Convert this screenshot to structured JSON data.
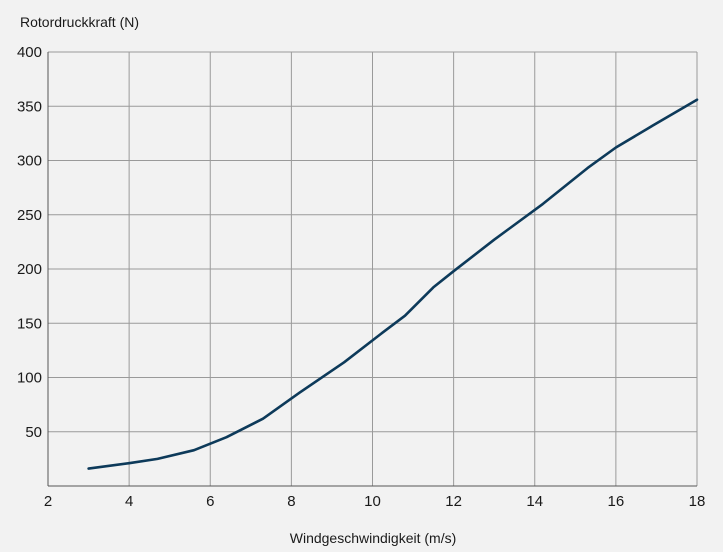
{
  "chart_data": {
    "type": "line",
    "title": "",
    "xlabel": "Windgeschwindigkeit (m/s)",
    "ylabel": "Rotordruckkraft (N)",
    "xlim": [
      2,
      18
    ],
    "ylim": [
      0,
      400
    ],
    "x_ticks": [
      2,
      4,
      6,
      8,
      10,
      12,
      14,
      16,
      18
    ],
    "y_ticks": [
      50,
      100,
      150,
      200,
      250,
      300,
      350,
      400
    ],
    "grid": true,
    "colors": {
      "line": "#0d3a5a",
      "grid": "#9a9a9a",
      "background": "#f2f2f2"
    },
    "series": [
      {
        "x": [
          3.0,
          4.0,
          4.7,
          5.6,
          6.4,
          7.3,
          8.2,
          9.3,
          10.2,
          10.8,
          11.5,
          12.0,
          13.0,
          14.2,
          14.4,
          15.3,
          16.0,
          16.9,
          18.0
        ],
        "y": [
          16,
          21,
          25,
          33,
          45,
          62,
          86,
          114,
          140,
          157,
          183,
          198,
          227,
          260,
          266,
          293,
          312,
          332,
          356
        ]
      }
    ]
  }
}
